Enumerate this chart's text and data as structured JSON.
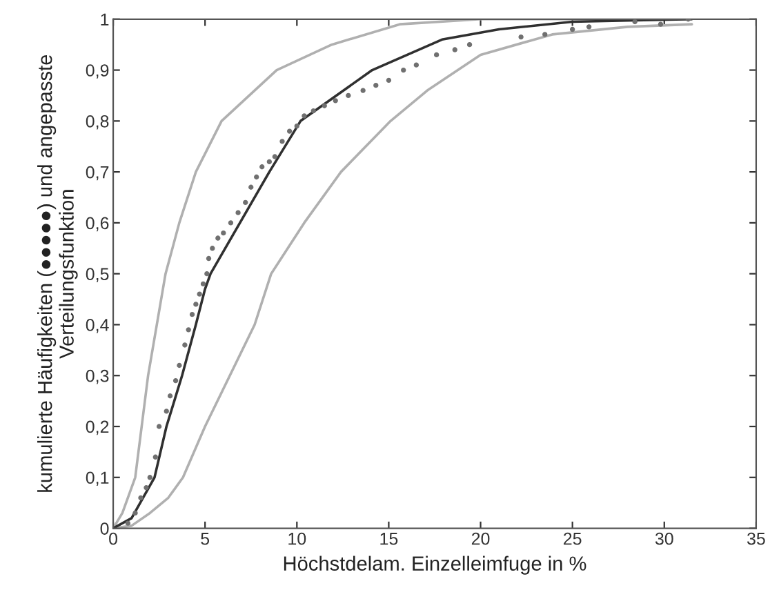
{
  "chart_data": {
    "type": "line",
    "xlabel": "Höchstdelam. Einzelleimfuge in %",
    "ylabel": "kumulierte Häufigkeiten (●●●●●) und angepasste\nVerteilungsfunktion",
    "xlim": [
      0,
      35
    ],
    "ylim": [
      0,
      1
    ],
    "xticks": [
      0,
      5,
      10,
      15,
      20,
      25,
      30,
      35
    ],
    "yticks": [
      0,
      {
        "value": 0.1,
        "label": "0,1"
      },
      {
        "value": 0.2,
        "label": "0,2"
      },
      {
        "value": 0.3,
        "label": "0,3"
      },
      {
        "value": 0.4,
        "label": "0,4"
      },
      {
        "value": 0.5,
        "label": "0,5"
      },
      {
        "value": 0.6,
        "label": "0,6"
      },
      {
        "value": 0.7,
        "label": "0,7"
      },
      {
        "value": 0.8,
        "label": "0,8"
      },
      {
        "value": 0.9,
        "label": "0,9"
      },
      1
    ],
    "grid": false,
    "series": [
      {
        "color": "#b0b0b0",
        "marker": "none",
        "x": [
          0,
          0.5,
          1.2,
          1.9,
          2.85,
          3.6,
          4.5,
          5.9,
          8.9,
          11.9,
          15.6,
          20,
          25,
          31.5
        ],
        "values": [
          0,
          0.03,
          0.1,
          0.3,
          0.5,
          0.6,
          0.7,
          0.8,
          0.9,
          0.95,
          0.99,
          1,
          1,
          1
        ]
      },
      {
        "color": "#b0b0b0",
        "marker": "none",
        "x": [
          0,
          1,
          2,
          3,
          3.8,
          5.0,
          7.7,
          8.6,
          10.4,
          12.4,
          15.1,
          17.1,
          20,
          23.9,
          28,
          31.5
        ],
        "values": [
          0,
          0.005,
          0.03,
          0.06,
          0.1,
          0.2,
          0.4,
          0.5,
          0.6,
          0.7,
          0.8,
          0.86,
          0.93,
          0.97,
          0.985,
          0.99
        ]
      },
      {
        "color": "#303030",
        "marker": "none",
        "x": [
          0,
          1,
          2.25,
          2.9,
          3.75,
          4.5,
          5.0,
          5.3,
          8.5,
          10.2,
          14.1,
          17.9,
          21,
          25,
          31.5
        ],
        "values": [
          0,
          0.02,
          0.1,
          0.2,
          0.3,
          0.4,
          0.47,
          0.5,
          0.7,
          0.8,
          0.9,
          0.96,
          0.98,
          0.995,
          1
        ]
      },
      {
        "type": "scatter",
        "color": "#707070",
        "marker": "circle",
        "x": [
          0.8,
          1.2,
          1.5,
          1.8,
          2.0,
          2.3,
          2.5,
          2.9,
          3.1,
          3.4,
          3.6,
          3.9,
          4.1,
          4.3,
          4.5,
          4.7,
          4.9,
          5.1,
          5.2,
          5.4,
          5.7,
          6.0,
          6.4,
          6.8,
          7.2,
          7.5,
          7.8,
          8.1,
          8.5,
          8.8,
          9.2,
          9.6,
          10.0,
          10.4,
          10.9,
          11.5,
          12.1,
          12.8,
          13.6,
          14.3,
          15.0,
          15.8,
          16.5,
          17.6,
          18.6,
          19.4,
          22.2,
          23.5,
          25.0,
          25.9,
          28.4,
          29.8,
          31.3
        ],
        "values": [
          0.01,
          0.03,
          0.06,
          0.08,
          0.1,
          0.14,
          0.2,
          0.23,
          0.26,
          0.29,
          0.32,
          0.36,
          0.39,
          0.42,
          0.44,
          0.46,
          0.48,
          0.5,
          0.53,
          0.55,
          0.57,
          0.58,
          0.6,
          0.62,
          0.64,
          0.67,
          0.69,
          0.71,
          0.72,
          0.73,
          0.76,
          0.78,
          0.79,
          0.81,
          0.82,
          0.83,
          0.84,
          0.85,
          0.86,
          0.87,
          0.88,
          0.9,
          0.91,
          0.93,
          0.94,
          0.95,
          0.965,
          0.97,
          0.98,
          0.985,
          0.995,
          0.99,
          1.0
        ]
      }
    ]
  }
}
